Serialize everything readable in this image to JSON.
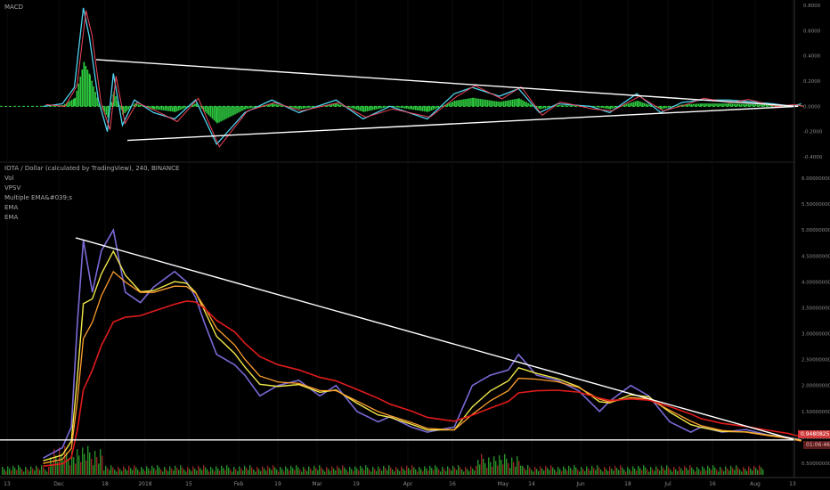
{
  "macd_panel": {
    "title": "MACD",
    "y_ticks": [
      "0.8000",
      "0.6000",
      "0.4000",
      "0.2000",
      "0.0000",
      "-0.2000",
      "-0.4000"
    ]
  },
  "price_panel": {
    "legend": {
      "title": "IOTA / Dollar (calculated by TradingView), 240, BINANCE",
      "items": [
        "Vol",
        "VPSV",
        "Multiple EMA&#039;s",
        "EMA",
        "EMA"
      ]
    },
    "y_ticks": [
      "6.00000000",
      "5.50000000",
      "5.00000000",
      "4.50000000",
      "4.00000000",
      "3.50000000",
      "3.00000000",
      "2.50000000",
      "2.00000000",
      "1.50000000",
      "1.00000000",
      "0.50000000"
    ],
    "price_tag": "0.94808255",
    "countdown_tag": "01:06:46"
  },
  "x_axis": {
    "ticks": [
      "13",
      "Dec",
      "18",
      "2018",
      "15",
      "Feb",
      "19",
      "Mar",
      "19",
      "Apr",
      "16",
      "May",
      "14",
      "Jun",
      "18",
      "Jul",
      "16",
      "Aug",
      "13"
    ]
  },
  "colors": {
    "background": "#000000",
    "trendline": "#ffffff",
    "support": "#ffffff",
    "ema_fast": "#f2e84a",
    "ema_mid": "#ff9f2e",
    "ema_slow": "#e01b1b",
    "macd_line": "#4fd3ee",
    "signal_line": "#f0455a",
    "hist_pos": "#2ecc40",
    "hist_neg": "#2ecc40",
    "price_tag_bg": "#d13b3b",
    "vol_up": "#2a8f2a",
    "vol_down": "#9b2222"
  },
  "chart_data": [
    {
      "type": "line",
      "series": [
        {
          "name": "MACD",
          "x": [
            "Nov 25",
            "Dec 1",
            "Dec 5",
            "Dec 8",
            "Dec 10",
            "Dec 13",
            "Dec 16",
            "Dec 18",
            "Dec 21",
            "Dec 25",
            "Jan 1",
            "Jan 8",
            "Jan 15",
            "Jan 22",
            "Feb 1",
            "Feb 10",
            "Feb 19",
            "Mar 1",
            "Mar 10",
            "Mar 19",
            "Apr 1",
            "Apr 10",
            "Apr 16",
            "Apr 25",
            "May 1",
            "May 8",
            "May 14",
            "May 25",
            "Jun 1",
            "Jun 10",
            "Jun 18",
            "Jun 25",
            "Jul 1",
            "Jul 10",
            "Jul 16",
            "Jul 25",
            "Aug 1",
            "Aug 4"
          ],
          "values": [
            0.0,
            0.02,
            0.15,
            0.78,
            0.55,
            0.05,
            -0.2,
            0.26,
            -0.15,
            0.05,
            -0.05,
            -0.1,
            0.05,
            -0.3,
            -0.05,
            0.05,
            -0.05,
            0.05,
            -0.1,
            0.0,
            -0.1,
            0.1,
            0.15,
            0.08,
            0.14,
            -0.05,
            0.02,
            0.0,
            -0.05,
            0.1,
            -0.05,
            0.03,
            0.05,
            0.05,
            0.04,
            0.02,
            0.0,
            0.02
          ]
        }
      ],
      "ylim": [
        -0.4,
        0.8
      ]
    },
    {
      "type": "line",
      "series": [
        {
          "name": "IOTA / Dollar",
          "x": [
            "Nov 25",
            "Dec 1",
            "Dec 4",
            "Dec 6",
            "Dec 8",
            "Dec 11",
            "Dec 14",
            "Dec 18",
            "Dec 22",
            "Dec 27",
            "Jan 1",
            "Jan 8",
            "Jan 12",
            "Jan 15",
            "Jan 18",
            "Jan 22",
            "Jan 28",
            "Feb 1",
            "Feb 6",
            "Feb 12",
            "Feb 19",
            "Feb 26",
            "Mar 1",
            "Mar 8",
            "Mar 15",
            "Mar 19",
            "Mar 26",
            "Apr 1",
            "Apr 10",
            "Apr 16",
            "Apr 22",
            "Apr 28",
            "May 1",
            "May 7",
            "May 14",
            "May 21",
            "May 28",
            "Jun 1",
            "Jun 8",
            "Jun 14",
            "Jun 21",
            "Jun 28",
            "Jul 1",
            "Jul 8",
            "Jul 16",
            "Jul 23",
            "Jul 30",
            "Aug 4"
          ],
          "values": [
            0.6,
            0.8,
            1.2,
            3.2,
            4.8,
            3.8,
            4.6,
            5.0,
            3.8,
            3.6,
            3.9,
            4.2,
            4.0,
            3.7,
            3.2,
            2.6,
            2.4,
            2.2,
            1.8,
            2.0,
            2.1,
            1.8,
            2.0,
            1.5,
            1.3,
            1.4,
            1.2,
            1.1,
            1.2,
            2.0,
            2.2,
            2.3,
            2.6,
            2.2,
            2.1,
            1.9,
            1.5,
            1.7,
            2.0,
            1.8,
            1.3,
            1.1,
            1.2,
            1.1,
            1.15,
            1.05,
            1.0,
            0.95
          ]
        }
      ],
      "ylim": [
        0.5,
        6.0
      ]
    }
  ]
}
